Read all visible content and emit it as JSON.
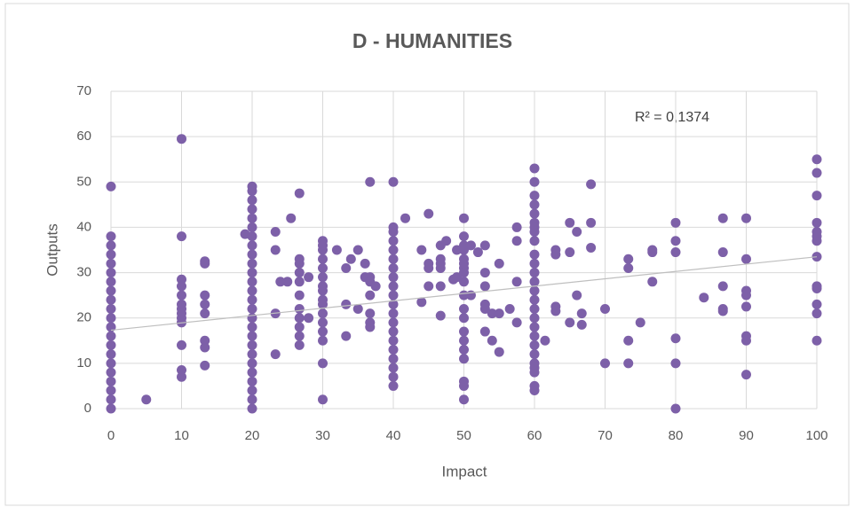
{
  "chart_data": {
    "type": "scatter",
    "title": "D - HUMANITIES",
    "x_label": "Impact",
    "y_label": "Outputs",
    "annotation": "R² = 0,1374",
    "color": "#7d60a8",
    "grid": true,
    "xlim": [
      0,
      100
    ],
    "xticks": [
      0,
      10,
      20,
      30,
      40,
      50,
      60,
      70,
      80,
      90,
      100
    ],
    "ylim": [
      0,
      70
    ],
    "yticks": [
      0,
      10,
      20,
      30,
      40,
      50,
      60,
      70
    ],
    "x": [
      0,
      0,
      0,
      0,
      0,
      0,
      0,
      0,
      0,
      0,
      0,
      0,
      0,
      0,
      0,
      0,
      0,
      0,
      0,
      0,
      0,
      5,
      10,
      10,
      10,
      10,
      10,
      10,
      10,
      10,
      10,
      10,
      10,
      10,
      10,
      13.3,
      13.3,
      13.3,
      13.3,
      13.3,
      13.3,
      13.3,
      13.3,
      19,
      20,
      20,
      20,
      20,
      20,
      20,
      20,
      20,
      20,
      20,
      20,
      20,
      20,
      20,
      20,
      20,
      20,
      20,
      20,
      20,
      20,
      20,
      20,
      20,
      20,
      20,
      23.3,
      23.3,
      23.3,
      23.3,
      24,
      25,
      25.5,
      26.7,
      26.7,
      26.7,
      26.7,
      26.7,
      26.7,
      26.7,
      26.7,
      26.7,
      26.7,
      26.7,
      28,
      28,
      30,
      30,
      30,
      30,
      30,
      30,
      30,
      30,
      30,
      30,
      30,
      30,
      30,
      30,
      30,
      30,
      32,
      33.3,
      33.3,
      33.3,
      34,
      35,
      35,
      36,
      36,
      36.7,
      36.7,
      36.7,
      36.7,
      36.7,
      36.7,
      36.7,
      37.5,
      40,
      40,
      40,
      40,
      40,
      40,
      40,
      40,
      40,
      40,
      40,
      40,
      40,
      40,
      40,
      40,
      40,
      40,
      40,
      40,
      41.7,
      44,
      44,
      45,
      45,
      45,
      45,
      46.7,
      46.7,
      46.7,
      46.7,
      46.7,
      46.7,
      47.5,
      48.5,
      49,
      49,
      50,
      50,
      50,
      50,
      50,
      50,
      50,
      50,
      50,
      50,
      50,
      50,
      50,
      50,
      50,
      50,
      50,
      50,
      50,
      51,
      51,
      52,
      53,
      53,
      53,
      53,
      53,
      53,
      54,
      54,
      55,
      55,
      55,
      56.5,
      57.5,
      57.5,
      57.5,
      57.5,
      60,
      60,
      60,
      60,
      60,
      60,
      60,
      60,
      60,
      60,
      60,
      60,
      60,
      60,
      60,
      60,
      60,
      60,
      60,
      60,
      60,
      60,
      60,
      60,
      60,
      60,
      61.5,
      63,
      63,
      63,
      63,
      65,
      65,
      65,
      66,
      66,
      66.7,
      66.7,
      68,
      68,
      68,
      70,
      70,
      73.3,
      73.3,
      73.3,
      73.3,
      75,
      76.7,
      76.7,
      76.7,
      80,
      80,
      80,
      80,
      80,
      80,
      84,
      86.7,
      86.7,
      86.7,
      86.7,
      86.7,
      90,
      90,
      90,
      90,
      90,
      90,
      90,
      90,
      100,
      100,
      100,
      100,
      100,
      100,
      100,
      100,
      100,
      100,
      100,
      100,
      100
    ],
    "values": [
      0,
      2,
      4,
      6,
      8,
      10,
      12,
      14,
      16,
      18,
      20,
      22,
      24,
      26,
      28,
      30,
      32,
      34,
      36,
      38,
      49,
      2,
      59.5,
      38,
      28.5,
      27,
      25,
      23,
      22,
      21,
      20,
      19,
      14,
      8.5,
      7,
      32.5,
      32,
      25,
      23,
      21,
      15,
      13.5,
      9.5,
      38.5,
      0,
      2,
      4,
      6,
      8,
      10,
      12,
      14,
      16,
      18,
      20,
      22,
      24,
      26,
      28,
      30,
      32,
      34,
      36,
      38,
      40,
      42,
      44,
      46,
      48,
      49,
      39,
      35,
      21,
      12,
      28,
      28,
      42,
      47.5,
      33,
      32,
      30,
      28,
      25,
      22,
      20,
      18,
      16,
      14,
      29,
      20,
      37,
      36,
      35,
      33,
      31,
      29,
      27,
      26,
      24,
      23,
      21,
      19,
      17,
      15,
      10,
      2,
      35,
      31,
      23,
      16,
      33,
      35,
      22,
      32,
      29,
      50,
      29,
      28,
      25,
      21,
      19,
      18,
      27,
      5,
      7,
      9,
      11,
      13,
      15,
      17,
      19,
      21,
      23,
      25,
      27,
      29,
      31,
      33,
      35,
      37,
      39,
      40,
      50,
      42,
      35,
      23.5,
      43,
      32,
      31,
      27,
      36,
      33,
      32,
      31,
      27,
      20.5,
      37,
      28.5,
      35,
      29,
      42,
      38,
      36,
      35,
      33,
      32,
      31,
      30,
      28,
      25,
      22,
      20,
      17,
      15,
      13,
      11,
      6,
      5,
      2,
      25,
      36,
      34.5,
      36,
      30,
      27,
      23,
      22,
      17,
      21,
      15,
      32,
      21,
      12.5,
      22,
      40,
      37,
      28,
      19,
      53,
      50,
      47,
      45,
      43,
      41,
      40,
      39,
      37,
      34,
      32,
      30,
      28,
      26,
      24,
      22,
      20,
      18,
      16,
      14,
      12,
      10,
      9,
      8,
      5,
      4,
      15,
      35,
      34,
      22.5,
      21.5,
      41,
      34.5,
      19,
      39,
      25,
      21,
      18.5,
      49.5,
      41,
      35.5,
      22,
      10,
      33,
      31,
      15,
      10,
      19,
      35,
      34.5,
      28,
      41,
      37,
      34.5,
      15.5,
      10,
      0,
      24.5,
      42,
      34.5,
      27,
      22,
      21.5,
      42,
      33,
      26,
      25,
      22.5,
      16,
      15,
      7.5,
      55,
      52,
      47,
      41,
      39,
      38,
      37,
      33.5,
      27,
      26.5,
      23,
      21,
      15
    ],
    "trendline": {
      "x": [
        0,
        100
      ],
      "values": [
        17.3,
        33.5
      ],
      "color": "#bfbfbf"
    }
  }
}
